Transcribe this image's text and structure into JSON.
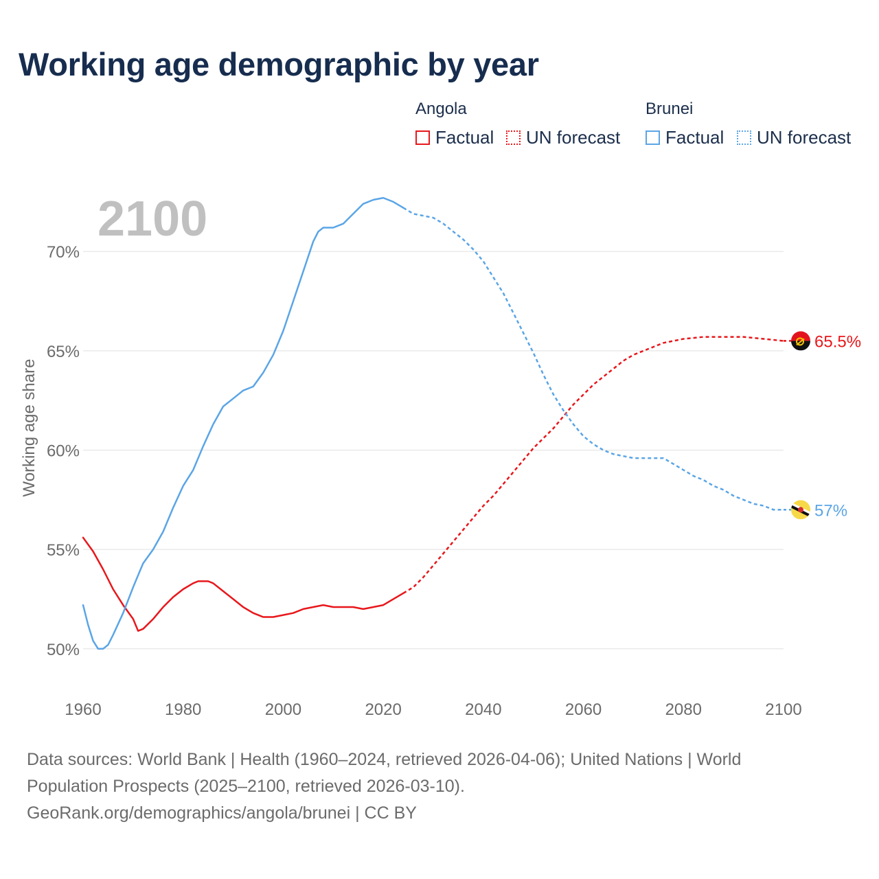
{
  "title": "Working age demographic by year",
  "legend": {
    "groups": [
      {
        "country": "Angola",
        "factual_label": "Factual",
        "forecast_label": "UN forecast",
        "color": "#e8171b"
      },
      {
        "country": "Brunei",
        "factual_label": "Factual",
        "forecast_label": "UN forecast",
        "color": "#5aa5e6"
      }
    ]
  },
  "year_watermark": "2100",
  "footer": {
    "line1": "Data sources: World Bank | Health (1960–2024, retrieved 2026-04-06); United Nations | World",
    "line2": "Population Prospects (2025–2100, retrieved 2026-03-10).",
    "line3": "GeoRank.org/demographics/angola/brunei | CC BY"
  },
  "chart_data": {
    "type": "line",
    "title": "Working age demographic by year",
    "xlabel": "",
    "ylabel": "Working age share",
    "xlim": [
      1960,
      2100
    ],
    "ylim": [
      49.3,
      73.5
    ],
    "x_ticks": [
      1960,
      1980,
      2000,
      2020,
      2040,
      2060,
      2080,
      2100
    ],
    "x_tick_labels": [
      "1960",
      "1980",
      "2000",
      "2020",
      "2040",
      "2060",
      "2080",
      "2100"
    ],
    "y_ticks": [
      50,
      55,
      60,
      65,
      70
    ],
    "y_tick_labels": [
      "50%",
      "55%",
      "60%",
      "65%",
      "70%"
    ],
    "grid": true,
    "factual_end_year": 2024,
    "series": [
      {
        "name": "Angola",
        "color": "#e8171b",
        "end_label": "65.5%",
        "end_value": 65.5,
        "points": [
          [
            1960,
            55.6
          ],
          [
            1962,
            54.9
          ],
          [
            1964,
            54.0
          ],
          [
            1966,
            53.0
          ],
          [
            1968,
            52.2
          ],
          [
            1970,
            51.5
          ],
          [
            1971,
            50.9
          ],
          [
            1972,
            51.0
          ],
          [
            1974,
            51.5
          ],
          [
            1976,
            52.1
          ],
          [
            1978,
            52.6
          ],
          [
            1980,
            53.0
          ],
          [
            1982,
            53.3
          ],
          [
            1983,
            53.4
          ],
          [
            1985,
            53.4
          ],
          [
            1986,
            53.3
          ],
          [
            1988,
            52.9
          ],
          [
            1990,
            52.5
          ],
          [
            1992,
            52.1
          ],
          [
            1994,
            51.8
          ],
          [
            1996,
            51.6
          ],
          [
            1998,
            51.6
          ],
          [
            2000,
            51.7
          ],
          [
            2002,
            51.8
          ],
          [
            2004,
            52.0
          ],
          [
            2006,
            52.1
          ],
          [
            2008,
            52.2
          ],
          [
            2010,
            52.1
          ],
          [
            2012,
            52.1
          ],
          [
            2014,
            52.1
          ],
          [
            2016,
            52.0
          ],
          [
            2018,
            52.1
          ],
          [
            2020,
            52.2
          ],
          [
            2022,
            52.5
          ],
          [
            2024,
            52.8
          ],
          [
            2026,
            53.1
          ],
          [
            2028,
            53.6
          ],
          [
            2030,
            54.2
          ],
          [
            2032,
            54.8
          ],
          [
            2034,
            55.4
          ],
          [
            2036,
            56.0
          ],
          [
            2038,
            56.6
          ],
          [
            2040,
            57.2
          ],
          [
            2042,
            57.7
          ],
          [
            2044,
            58.3
          ],
          [
            2046,
            58.9
          ],
          [
            2048,
            59.5
          ],
          [
            2050,
            60.1
          ],
          [
            2052,
            60.6
          ],
          [
            2054,
            61.1
          ],
          [
            2056,
            61.7
          ],
          [
            2058,
            62.3
          ],
          [
            2060,
            62.8
          ],
          [
            2062,
            63.3
          ],
          [
            2064,
            63.7
          ],
          [
            2066,
            64.1
          ],
          [
            2068,
            64.5
          ],
          [
            2070,
            64.8
          ],
          [
            2072,
            65.0
          ],
          [
            2074,
            65.2
          ],
          [
            2076,
            65.4
          ],
          [
            2078,
            65.5
          ],
          [
            2080,
            65.6
          ],
          [
            2084,
            65.7
          ],
          [
            2088,
            65.7
          ],
          [
            2092,
            65.7
          ],
          [
            2096,
            65.6
          ],
          [
            2100,
            65.5
          ]
        ]
      },
      {
        "name": "Brunei",
        "color": "#5aa5e6",
        "end_label": "57%",
        "end_value": 57.0,
        "points": [
          [
            1960,
            52.2
          ],
          [
            1961,
            51.2
          ],
          [
            1962,
            50.4
          ],
          [
            1963,
            50.0
          ],
          [
            1964,
            50.0
          ],
          [
            1965,
            50.2
          ],
          [
            1966,
            50.7
          ],
          [
            1968,
            51.8
          ],
          [
            1970,
            53.1
          ],
          [
            1971,
            53.7
          ],
          [
            1972,
            54.3
          ],
          [
            1974,
            55.0
          ],
          [
            1976,
            55.9
          ],
          [
            1978,
            57.1
          ],
          [
            1980,
            58.2
          ],
          [
            1982,
            59.0
          ],
          [
            1984,
            60.2
          ],
          [
            1986,
            61.3
          ],
          [
            1988,
            62.2
          ],
          [
            1990,
            62.6
          ],
          [
            1992,
            63.0
          ],
          [
            1994,
            63.2
          ],
          [
            1996,
            63.9
          ],
          [
            1998,
            64.8
          ],
          [
            2000,
            66.0
          ],
          [
            2002,
            67.5
          ],
          [
            2004,
            69.0
          ],
          [
            2006,
            70.5
          ],
          [
            2007,
            71.0
          ],
          [
            2008,
            71.2
          ],
          [
            2010,
            71.2
          ],
          [
            2012,
            71.4
          ],
          [
            2014,
            71.9
          ],
          [
            2016,
            72.4
          ],
          [
            2018,
            72.6
          ],
          [
            2020,
            72.7
          ],
          [
            2022,
            72.5
          ],
          [
            2024,
            72.2
          ],
          [
            2026,
            71.9
          ],
          [
            2028,
            71.8
          ],
          [
            2030,
            71.7
          ],
          [
            2032,
            71.4
          ],
          [
            2034,
            71.0
          ],
          [
            2036,
            70.6
          ],
          [
            2038,
            70.1
          ],
          [
            2040,
            69.5
          ],
          [
            2042,
            68.7
          ],
          [
            2044,
            67.9
          ],
          [
            2046,
            66.9
          ],
          [
            2048,
            65.9
          ],
          [
            2050,
            64.9
          ],
          [
            2052,
            63.8
          ],
          [
            2054,
            62.8
          ],
          [
            2056,
            62.0
          ],
          [
            2058,
            61.3
          ],
          [
            2060,
            60.7
          ],
          [
            2062,
            60.3
          ],
          [
            2064,
            60.0
          ],
          [
            2066,
            59.8
          ],
          [
            2068,
            59.7
          ],
          [
            2070,
            59.6
          ],
          [
            2072,
            59.6
          ],
          [
            2074,
            59.6
          ],
          [
            2076,
            59.6
          ],
          [
            2078,
            59.3
          ],
          [
            2080,
            59.0
          ],
          [
            2082,
            58.7
          ],
          [
            2084,
            58.5
          ],
          [
            2086,
            58.2
          ],
          [
            2088,
            58.0
          ],
          [
            2090,
            57.7
          ],
          [
            2092,
            57.5
          ],
          [
            2094,
            57.3
          ],
          [
            2096,
            57.2
          ],
          [
            2098,
            57.0
          ],
          [
            2100,
            57.0
          ]
        ]
      }
    ]
  }
}
